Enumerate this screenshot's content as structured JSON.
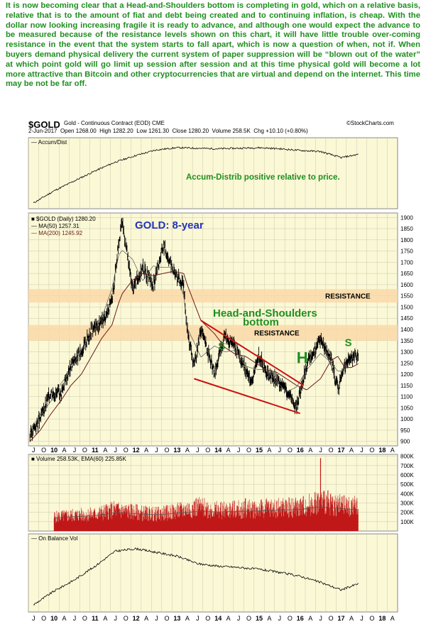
{
  "commentary": "It is now becoming clear that a Head-and-Shoulders bottom is completing in gold, which on a relative basis, relative that is to the amount of fiat and debt being created and to continuing inflation, is cheap. With the dollar now looking increasing fragile it is ready to advance, and although one would expect the advance to be measured because of the resistance levels shown on this chart, it will have little trouble over-coming resistance in the event that the system starts to fall apart, which is now a question of when, not if. When buyers demand physical delivery the current system of paper suppression will be “blown out of the water” at which point gold will go limit up session after session and at this time physical gold will become a lot more attractive than Bitcoin and other cryptocurrencies that are virtual and depend on the internet. This time may be not be far off.",
  "header": {
    "symbol": "$GOLD",
    "description": "Gold - Continuous Contract (EOD) CME",
    "copyright": "©StockCharts.com",
    "date": "2-Jun-2017",
    "open_label": "Open",
    "open": "1268.00",
    "high_label": "High",
    "high": "1282.20",
    "low_label": "Low",
    "low": "1261.30",
    "close_label": "Close",
    "close": "1280.20",
    "volume_label": "Volume",
    "volume": "258.5K",
    "chg_label": "Chg",
    "chg": "+10.10 (+0.80%)"
  },
  "colors": {
    "panel_bg": "#fbf8d6",
    "grid": "#c8c8b0",
    "price": "#000000",
    "ma200": "#6b1a1a",
    "resistance": "#f9d9a8",
    "annotation_blue": "#2233bb",
    "annotation_green": "#1f8f1f",
    "trend": "#cc1111",
    "volume": "#c01818"
  },
  "chart_data": [
    {
      "type": "line",
      "panel": "accum_dist",
      "title": "Accum/Dist",
      "annotation": "Accum-Distrib positive relative to price.",
      "x": [
        "2009-07",
        "2010-01",
        "2010-07",
        "2011-01",
        "2011-07",
        "2012-01",
        "2012-07",
        "2013-01",
        "2013-07",
        "2014-01",
        "2014-07",
        "2015-01",
        "2015-07",
        "2016-01",
        "2016-07",
        "2017-01",
        "2017-06"
      ],
      "values": [
        0.0,
        0.22,
        0.4,
        0.58,
        0.74,
        0.86,
        0.96,
        1.0,
        0.99,
        0.98,
        0.99,
        1.0,
        0.98,
        0.95,
        0.93,
        0.82,
        0.88
      ]
    },
    {
      "type": "line",
      "panel": "price",
      "title": "GOLD: 8-year",
      "legend": {
        "price": "$GOLD (Daily) 1280.20",
        "ma50": "MA(50) 1257.31",
        "ma200": "MA(200) 1245.92"
      },
      "x": [
        "2009-06",
        "2009-09",
        "2009-12",
        "2010-03",
        "2010-06",
        "2010-09",
        "2010-12",
        "2011-03",
        "2011-06",
        "2011-08",
        "2011-09",
        "2011-12",
        "2012-03",
        "2012-06",
        "2012-09",
        "2012-12",
        "2013-03",
        "2013-04",
        "2013-06",
        "2013-08",
        "2013-12",
        "2014-03",
        "2014-06",
        "2014-09",
        "2014-11",
        "2015-01",
        "2015-03",
        "2015-06",
        "2015-09",
        "2015-12",
        "2016-03",
        "2016-07",
        "2016-10",
        "2016-12",
        "2017-02",
        "2017-04",
        "2017-06"
      ],
      "values": [
        930,
        1000,
        1120,
        1110,
        1240,
        1300,
        1400,
        1430,
        1520,
        1800,
        1880,
        1580,
        1680,
        1590,
        1780,
        1660,
        1590,
        1400,
        1230,
        1400,
        1200,
        1380,
        1320,
        1220,
        1170,
        1290,
        1200,
        1180,
        1130,
        1050,
        1250,
        1360,
        1270,
        1130,
        1240,
        1280,
        1280
      ],
      "ma200": [
        900,
        950,
        1020,
        1080,
        1150,
        1200,
        1280,
        1360,
        1420,
        1520,
        1560,
        1620,
        1650,
        1640,
        1650,
        1660,
        1650,
        1600,
        1520,
        1440,
        1380,
        1320,
        1290,
        1280,
        1260,
        1240,
        1220,
        1210,
        1180,
        1150,
        1130,
        1180,
        1260,
        1280,
        1230,
        1230,
        1246
      ],
      "yticks": [
        900,
        950,
        1000,
        1050,
        1100,
        1150,
        1200,
        1250,
        1300,
        1350,
        1400,
        1450,
        1500,
        1550,
        1600,
        1650,
        1700,
        1750,
        1800,
        1850,
        1900
      ],
      "ylim": [
        880,
        1920
      ],
      "resistance_bands": [
        {
          "label": "RESISTANCE",
          "low": 1520,
          "high": 1580
        },
        {
          "label": "RESISTANCE",
          "low": 1350,
          "high": 1420
        }
      ],
      "pattern_title": [
        "Head-and-Shoulders",
        "bottom"
      ],
      "pattern_labels": [
        {
          "text": "S",
          "x": "2014-01",
          "y": 1310
        },
        {
          "text": "H",
          "x": "2015-12",
          "y": 1250
        },
        {
          "text": "S",
          "x": "2017-02",
          "y": 1325
        }
      ],
      "trend_lines": [
        {
          "from": {
            "x": "2013-08",
            "y": 1440
          },
          "to": {
            "x": "2016-02",
            "y": 1150
          }
        },
        {
          "from": {
            "x": "2013-06",
            "y": 1180
          },
          "to": {
            "x": "2016-01",
            "y": 1025
          }
        }
      ]
    },
    {
      "type": "bar",
      "panel": "volume",
      "title": "Volume 258.53K, EMA(60) 225.85K",
      "yticks": [
        "100K",
        "200K",
        "300K",
        "400K",
        "500K",
        "600K",
        "700K",
        "800K"
      ],
      "ytick_values": [
        100,
        200,
        300,
        400,
        500,
        600,
        700,
        800
      ],
      "ylim": [
        0,
        820
      ],
      "x": [
        "2010-01",
        "2010-07",
        "2011-01",
        "2011-07",
        "2012-01",
        "2012-07",
        "2013-01",
        "2013-07",
        "2014-01",
        "2014-07",
        "2015-01",
        "2015-07",
        "2016-01",
        "2016-07",
        "2017-01",
        "2017-06"
      ],
      "values": [
        150,
        170,
        180,
        230,
        200,
        180,
        210,
        260,
        220,
        230,
        240,
        250,
        260,
        320,
        270,
        258.53
      ],
      "ema60": [
        140,
        155,
        165,
        195,
        185,
        175,
        190,
        210,
        205,
        210,
        215,
        225,
        230,
        260,
        240,
        225.85
      ],
      "spikes": [
        {
          "x": "2016-07",
          "value": 780
        },
        {
          "x": "2014-09",
          "value": 350
        }
      ]
    },
    {
      "type": "line",
      "panel": "on_balance_volume",
      "title": "On Balance Vol",
      "x": [
        "2009-07",
        "2010-01",
        "2010-07",
        "2011-01",
        "2011-07",
        "2012-01",
        "2012-07",
        "2013-01",
        "2013-07",
        "2014-01",
        "2014-07",
        "2015-01",
        "2015-07",
        "2016-01",
        "2016-07",
        "2017-01",
        "2017-06"
      ],
      "values": [
        0.0,
        0.22,
        0.4,
        0.62,
        0.86,
        0.9,
        0.84,
        0.78,
        0.66,
        0.62,
        0.6,
        0.57,
        0.52,
        0.46,
        0.36,
        0.24,
        0.34
      ]
    }
  ],
  "x_axis": {
    "labels": [
      "J",
      "O",
      "10",
      "A",
      "J",
      "O",
      "11",
      "A",
      "J",
      "O",
      "12",
      "A",
      "J",
      "O",
      "13",
      "A",
      "J",
      "O",
      "14",
      "A",
      "J",
      "O",
      "15",
      "A",
      "J",
      "O",
      "16",
      "A",
      "J",
      "O",
      "17",
      "A",
      "J",
      "O",
      "18",
      "A"
    ],
    "start": "2009-06",
    "end": "2018-06"
  }
}
